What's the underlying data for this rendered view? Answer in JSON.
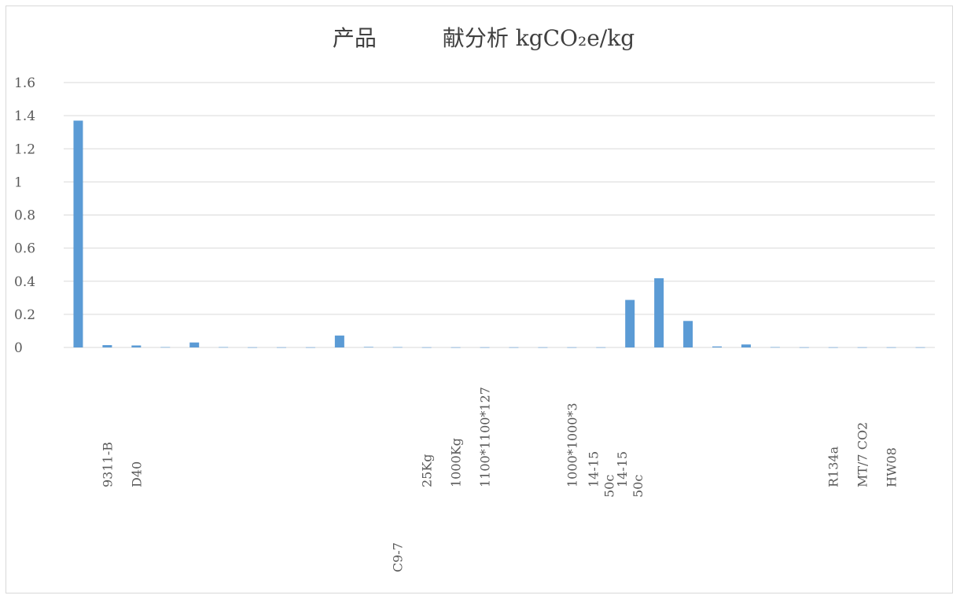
{
  "chart_data": {
    "type": "bar",
    "title": "产品　　　献分析 kgCO₂e/kg",
    "xlabel": "",
    "ylabel": "",
    "ylim": [
      0,
      1.6
    ],
    "yticks": [
      "0",
      "0.2",
      "0.4",
      "0.6",
      "0.8",
      "1",
      "1.2",
      "1.4",
      "1.6"
    ],
    "grid": true,
    "legend": "none",
    "bar_color": "#5b9bd5",
    "categories": [
      "",
      "9311-B",
      "D40",
      "",
      "",
      "",
      "",
      "",
      "",
      "",
      "",
      "C9-7",
      "25Kg",
      "1000Kg",
      "1100*1100*127",
      "",
      "",
      "1000*1000*3",
      "14-15\n50c",
      "14-15\n50c",
      "",
      "",
      "",
      "",
      "",
      "",
      "R134a",
      "MT/7 CO2",
      "HW08",
      ""
    ],
    "values": [
      1.37,
      0.014,
      0.012,
      0.002,
      0.03,
      0.002,
      0.001,
      0.001,
      0.001,
      0.072,
      0.003,
      0.002,
      0.001,
      0.001,
      0.001,
      0.001,
      0.001,
      0.001,
      0.001,
      0.287,
      0.418,
      0.16,
      0.006,
      0.018,
      0.002,
      0.001,
      0.001,
      0.001,
      0.001,
      0.001
    ]
  }
}
